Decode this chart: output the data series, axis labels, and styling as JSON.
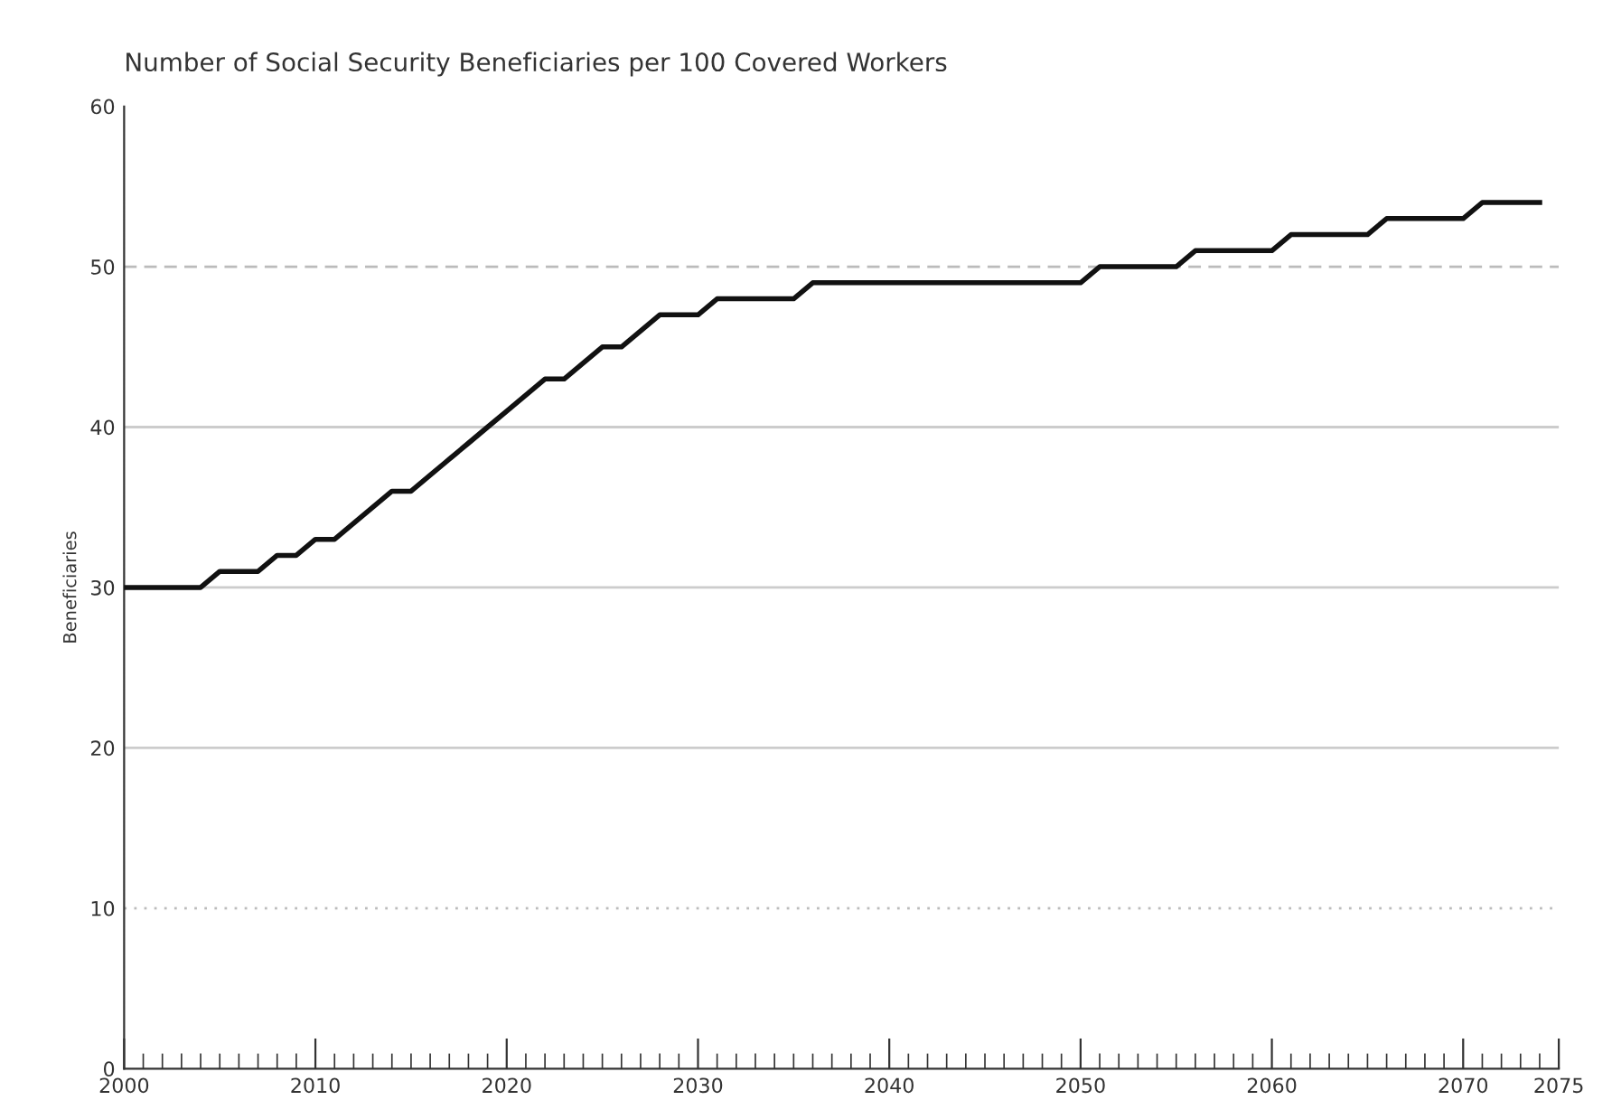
{
  "chart_data": {
    "type": "line",
    "title": "Number of Social Security Beneficiaries per 100 Covered Workers",
    "ylabel": "Beneficiaries",
    "x": [
      2000,
      2001,
      2002,
      2003,
      2004,
      2005,
      2006,
      2007,
      2008,
      2009,
      2010,
      2011,
      2012,
      2013,
      2014,
      2015,
      2016,
      2017,
      2018,
      2019,
      2020,
      2021,
      2022,
      2023,
      2024,
      2025,
      2026,
      2027,
      2028,
      2029,
      2030,
      2031,
      2032,
      2033,
      2034,
      2035,
      2036,
      2037,
      2038,
      2039,
      2040,
      2041,
      2042,
      2043,
      2044,
      2045,
      2046,
      2047,
      2048,
      2049,
      2050,
      2051,
      2052,
      2053,
      2054,
      2055,
      2056,
      2057,
      2058,
      2059,
      2060,
      2061,
      2062,
      2063,
      2064,
      2065,
      2066,
      2067,
      2068,
      2069,
      2070,
      2071,
      2072,
      2073,
      2074
    ],
    "series": [
      {
        "color": "#111111",
        "values": [
          30,
          30,
          30,
          30,
          30,
          31,
          31,
          31,
          32,
          32,
          33,
          33,
          34,
          35,
          36,
          36,
          37,
          38,
          39,
          40,
          41,
          42,
          43,
          43,
          44,
          45,
          45,
          46,
          47,
          47,
          47,
          48,
          48,
          48,
          48,
          48,
          49,
          49,
          49,
          49,
          49,
          49,
          49,
          49,
          49,
          49,
          49,
          49,
          49,
          49,
          49,
          50,
          50,
          50,
          50,
          50,
          51,
          51,
          51,
          51,
          51,
          52,
          52,
          52,
          52,
          52,
          53,
          53,
          53,
          53,
          53,
          54,
          54,
          54,
          54
        ]
      }
    ],
    "xlim": [
      2000,
      2075
    ],
    "ylim": [
      0,
      60
    ],
    "xticks": [
      2000,
      {
        "value": 2001,
        "label": null
      },
      {
        "value": 2002,
        "label": null
      },
      {
        "value": 2003,
        "label": null
      },
      {
        "value": 2004,
        "label": null
      },
      {
        "value": 2005,
        "label": null
      },
      {
        "value": 2006,
        "label": null
      },
      {
        "value": 2007,
        "label": null
      },
      {
        "value": 2008,
        "label": null
      },
      {
        "value": 2009,
        "label": null
      },
      2010,
      {
        "value": 2011,
        "label": null
      },
      {
        "value": 2012,
        "label": null
      },
      {
        "value": 2013,
        "label": null
      },
      {
        "value": 2014,
        "label": null
      },
      {
        "value": 2015,
        "label": null
      },
      {
        "value": 2016,
        "label": null
      },
      {
        "value": 2017,
        "label": null
      },
      {
        "value": 2018,
        "label": null
      },
      {
        "value": 2019,
        "label": null
      },
      2020,
      {
        "value": 2021,
        "label": null
      },
      {
        "value": 2022,
        "label": null
      },
      {
        "value": 2023,
        "label": null
      },
      {
        "value": 2024,
        "label": null
      },
      {
        "value": 2025,
        "label": null
      },
      {
        "value": 2026,
        "label": null
      },
      {
        "value": 2027,
        "label": null
      },
      {
        "value": 2028,
        "label": null
      },
      {
        "value": 2029,
        "label": null
      },
      2030,
      {
        "value": 2031,
        "label": null
      },
      {
        "value": 2032,
        "label": null
      },
      {
        "value": 2033,
        "label": null
      },
      {
        "value": 2034,
        "label": null
      },
      {
        "value": 2035,
        "label": null
      },
      {
        "value": 2036,
        "label": null
      },
      {
        "value": 2037,
        "label": null
      },
      {
        "value": 2038,
        "label": null
      },
      {
        "value": 2039,
        "label": null
      },
      2040,
      {
        "value": 2041,
        "label": null
      },
      {
        "value": 2042,
        "label": null
      },
      {
        "value": 2043,
        "label": null
      },
      {
        "value": 2044,
        "label": null
      },
      {
        "value": 2045,
        "label": null
      },
      {
        "value": 2046,
        "label": null
      },
      {
        "value": 2047,
        "label": null
      },
      {
        "value": 2048,
        "label": null
      },
      {
        "value": 2049,
        "label": null
      },
      2050,
      {
        "value": 2051,
        "label": null
      },
      {
        "value": 2052,
        "label": null
      },
      {
        "value": 2053,
        "label": null
      },
      {
        "value": 2054,
        "label": null
      },
      {
        "value": 2055,
        "label": null
      },
      {
        "value": 2056,
        "label": null
      },
      {
        "value": 2057,
        "label": null
      },
      {
        "value": 2058,
        "label": null
      },
      {
        "value": 2059,
        "label": null
      },
      2060,
      {
        "value": 2061,
        "label": null
      },
      {
        "value": 2062,
        "label": null
      },
      {
        "value": 2063,
        "label": null
      },
      {
        "value": 2064,
        "label": null
      },
      {
        "value": 2065,
        "label": null
      },
      {
        "value": 2066,
        "label": null
      },
      {
        "value": 2067,
        "label": null
      },
      {
        "value": 2068,
        "label": null
      },
      {
        "value": 2069,
        "label": null
      },
      2070,
      {
        "value": 2071,
        "label": null
      },
      {
        "value": 2072,
        "label": null
      },
      {
        "value": 2073,
        "label": null
      },
      {
        "value": 2074,
        "label": null
      },
      2075
    ],
    "yticks": [
      0,
      10,
      20,
      30,
      40,
      50,
      60
    ],
    "ref_lines": [
      {
        "axis": "y",
        "value": 10,
        "label": null,
        "color": "#bbbbbb",
        "line_style": "dotted"
      },
      {
        "axis": "y",
        "value": 20,
        "label": null,
        "color": "#cccccc",
        "line_style": "solid"
      },
      {
        "axis": "y",
        "value": 30,
        "label": null,
        "color": "#cccccc",
        "line_style": "solid"
      },
      {
        "axis": "y",
        "value": 40,
        "label": null,
        "color": "#cccccc",
        "line_style": "solid"
      },
      {
        "axis": "y",
        "value": 50,
        "label": null,
        "color": "#bbbbbb",
        "line_style": "dashed"
      }
    ],
    "line_style": "solid",
    "grid": false,
    "legend": false
  }
}
